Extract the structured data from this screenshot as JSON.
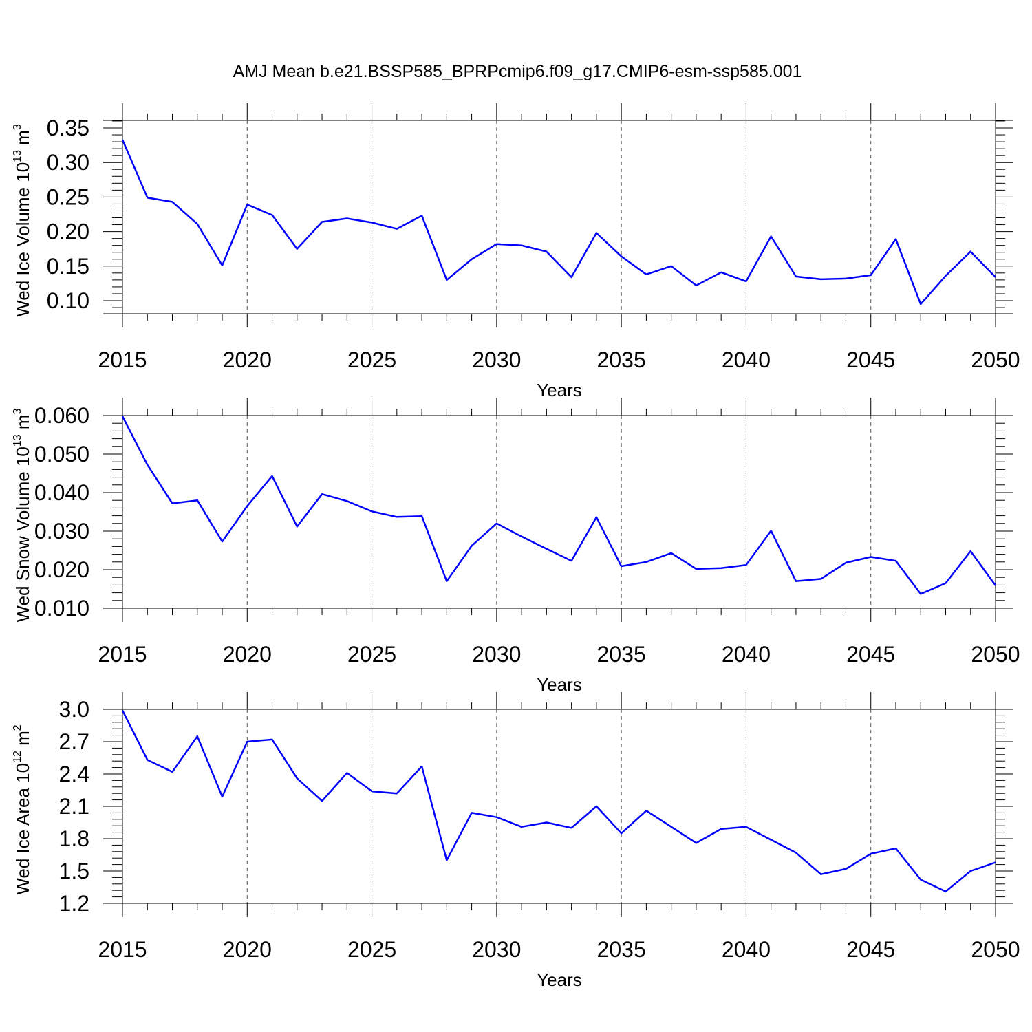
{
  "figure": {
    "title": "AMJ Mean b.e21.BSSP585_BPRPcmip6.f09_g17.CMIP6-esm-ssp585.001"
  },
  "chart_data": [
    {
      "type": "line",
      "xlabel": "Years",
      "ylabel_main": "Wed Ice Volume 10",
      "ylabel_exp": "13",
      "ylabel_unit": " m",
      "ylabel_unit_exp": "3",
      "xlim": [
        2015,
        2050
      ],
      "ylim": [
        0.08,
        0.36
      ],
      "xticks": [
        2015,
        2020,
        2025,
        2030,
        2035,
        2040,
        2045,
        2050
      ],
      "yticks": [
        0.1,
        0.15,
        0.2,
        0.25,
        0.3,
        0.35
      ],
      "ytick_labels": [
        "0.10",
        "0.15",
        "0.20",
        "0.25",
        "0.30",
        "0.35"
      ],
      "x": [
        2015,
        2016,
        2017,
        2018,
        2019,
        2020,
        2021,
        2022,
        2023,
        2024,
        2025,
        2026,
        2027,
        2028,
        2029,
        2030,
        2031,
        2032,
        2033,
        2034,
        2035,
        2036,
        2037,
        2038,
        2039,
        2040,
        2041,
        2042,
        2043,
        2044,
        2045,
        2046,
        2047,
        2048,
        2049,
        2050
      ],
      "values": [
        0.333,
        0.249,
        0.243,
        0.211,
        0.151,
        0.239,
        0.224,
        0.175,
        0.214,
        0.219,
        0.213,
        0.204,
        0.223,
        0.13,
        0.16,
        0.182,
        0.18,
        0.171,
        0.134,
        0.198,
        0.164,
        0.138,
        0.15,
        0.122,
        0.141,
        0.128,
        0.193,
        0.135,
        0.131,
        0.132,
        0.137,
        0.189,
        0.095,
        0.136,
        0.171,
        0.134
      ],
      "color": "#0000ff"
    },
    {
      "type": "line",
      "xlabel": "Years",
      "ylabel_main": "Wed Snow Volume 10",
      "ylabel_exp": "13",
      "ylabel_unit": " m",
      "ylabel_unit_exp": "3",
      "xlim": [
        2015,
        2050
      ],
      "ylim": [
        0.01,
        0.06
      ],
      "xticks": [
        2015,
        2020,
        2025,
        2030,
        2035,
        2040,
        2045,
        2050
      ],
      "yticks": [
        0.01,
        0.02,
        0.03,
        0.04,
        0.05,
        0.06
      ],
      "ytick_labels": [
        "0.010",
        "0.020",
        "0.030",
        "0.040",
        "0.050",
        "0.060"
      ],
      "x": [
        2015,
        2016,
        2017,
        2018,
        2019,
        2020,
        2021,
        2022,
        2023,
        2024,
        2025,
        2026,
        2027,
        2028,
        2029,
        2030,
        2031,
        2032,
        2033,
        2034,
        2035,
        2036,
        2037,
        2038,
        2039,
        2040,
        2041,
        2042,
        2043,
        2044,
        2045,
        2046,
        2047,
        2048,
        2049,
        2050
      ],
      "values": [
        0.0598,
        0.0472,
        0.0372,
        0.038,
        0.0273,
        0.0365,
        0.0443,
        0.0312,
        0.0396,
        0.0378,
        0.0351,
        0.0337,
        0.0339,
        0.017,
        0.0262,
        0.032,
        0.0286,
        0.0254,
        0.0223,
        0.0336,
        0.0209,
        0.022,
        0.0243,
        0.0202,
        0.0204,
        0.0212,
        0.0301,
        0.017,
        0.0176,
        0.0218,
        0.0233,
        0.0223,
        0.0137,
        0.0165,
        0.0248,
        0.0159
      ],
      "color": "#0000ff"
    },
    {
      "type": "line",
      "xlabel": "Years",
      "ylabel_main": "Wed Ice Area 10",
      "ylabel_exp": "12",
      "ylabel_unit": " m",
      "ylabel_unit_exp": "2",
      "xlim": [
        2015,
        2050
      ],
      "ylim": [
        1.2,
        3.0
      ],
      "xticks": [
        2015,
        2020,
        2025,
        2030,
        2035,
        2040,
        2045,
        2050
      ],
      "yticks": [
        1.2,
        1.5,
        1.8,
        2.1,
        2.4,
        2.7,
        3.0
      ],
      "ytick_labels": [
        "1.2",
        "1.5",
        "1.8",
        "2.1",
        "2.4",
        "2.7",
        "3.0"
      ],
      "x": [
        2015,
        2016,
        2017,
        2018,
        2019,
        2020,
        2021,
        2022,
        2023,
        2024,
        2025,
        2026,
        2027,
        2028,
        2029,
        2030,
        2031,
        2032,
        2033,
        2034,
        2035,
        2036,
        2037,
        2038,
        2039,
        2040,
        2041,
        2042,
        2043,
        2044,
        2045,
        2046,
        2047,
        2048,
        2049,
        2050
      ],
      "values": [
        2.99,
        2.53,
        2.42,
        2.75,
        2.19,
        2.7,
        2.72,
        2.36,
        2.15,
        2.41,
        2.24,
        2.22,
        2.47,
        1.6,
        2.04,
        2.0,
        1.91,
        1.95,
        1.9,
        2.1,
        1.85,
        2.06,
        1.91,
        1.76,
        1.89,
        1.91,
        1.79,
        1.67,
        1.47,
        1.52,
        1.66,
        1.71,
        1.42,
        1.31,
        1.5,
        1.58
      ],
      "color": "#0000ff"
    }
  ]
}
